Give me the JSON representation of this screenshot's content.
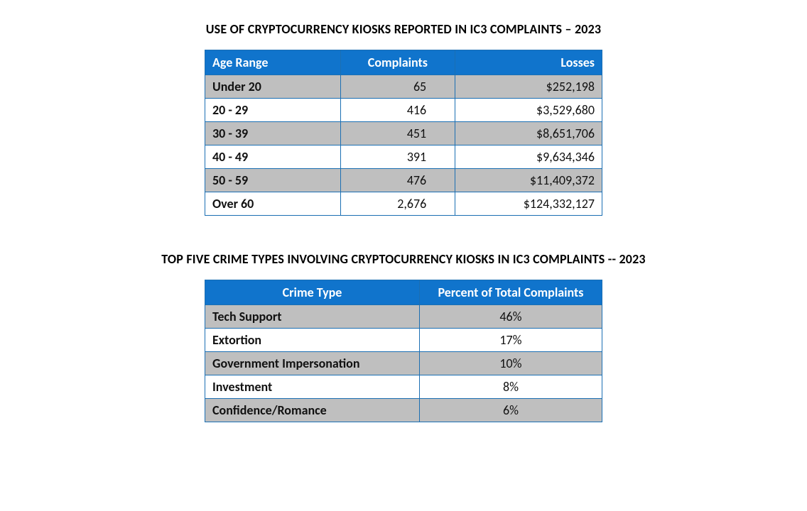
{
  "table1": {
    "title": "USE OF CRYPTOCURRENCY KIOSKS REPORTED IN IC3 COMPLAINTS – 2023",
    "columns": [
      "Age Range",
      "Complaints",
      "Losses"
    ],
    "rows": [
      {
        "age_range": "Under 20",
        "complaints": "65",
        "losses": "$252,198"
      },
      {
        "age_range": "20 - 29",
        "complaints": "416",
        "losses": "$3,529,680"
      },
      {
        "age_range": "30 - 39",
        "complaints": "451",
        "losses": "$8,651,706"
      },
      {
        "age_range": "40 - 49",
        "complaints": "391",
        "losses": "$9,634,346"
      },
      {
        "age_range": "50 - 59",
        "complaints": "476",
        "losses": "$11,409,372"
      },
      {
        "age_range": "Over 60",
        "complaints": "2,676",
        "losses": "$124,332,127"
      }
    ],
    "row_colors": [
      "#bfbfbf",
      "#ffffff",
      "#bfbfbf",
      "#ffffff",
      "#bfbfbf",
      "#ffffff"
    ]
  },
  "table2": {
    "title": "TOP FIVE CRIME TYPES INVOLVING CRYPTOCURRENCY KIOSKS IN IC3 COMPLAINTS -- 2023",
    "columns": [
      "Crime Type",
      "Percent of Total Complaints"
    ],
    "rows": [
      {
        "crime_type": "Tech Support",
        "percent": "46%"
      },
      {
        "crime_type": "Extortion",
        "percent": "17%"
      },
      {
        "crime_type": "Government Impersonation",
        "percent": "10%"
      },
      {
        "crime_type": "Investment",
        "percent": "8%"
      },
      {
        "crime_type": "Confidence/Romance",
        "percent": "6%"
      }
    ],
    "row_colors": [
      "#bfbfbf",
      "#ffffff",
      "#bfbfbf",
      "#ffffff",
      "#bfbfbf"
    ]
  },
  "styling": {
    "header_bg": "#1074cc",
    "header_text": "#ffffff",
    "border_color": "#1b6fb3",
    "alt_row_bg": "#bfbfbf",
    "plain_row_bg": "#ffffff",
    "title_fontsize": 18,
    "cell_fontsize": 18,
    "font_family": "Calibri"
  }
}
